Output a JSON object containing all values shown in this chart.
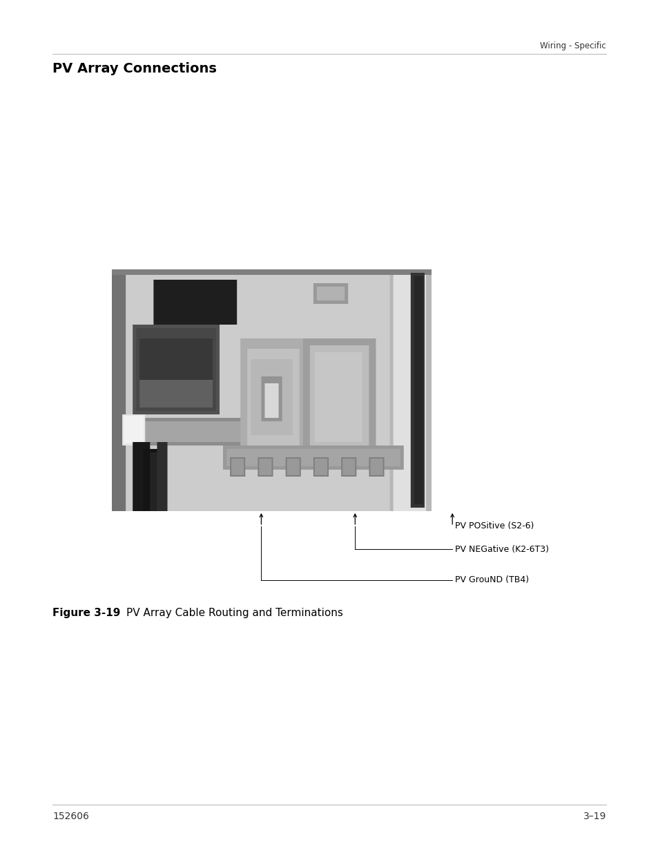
{
  "page_width": 9.54,
  "page_height": 12.35,
  "background_color": "#ffffff",
  "header_text": "Wiring - Specific",
  "header_line_color": "#bbbbbb",
  "section_title": "PV Array Connections",
  "section_title_fontsize": 14,
  "section_title_fontweight": "bold",
  "figure_caption_bold": "Figure 3-19",
  "figure_caption_rest": "PV Array Cable Routing and Terminations",
  "figure_caption_fontsize": 11,
  "footer_line_color": "#bbbbbb",
  "footer_left_text": "152606",
  "footer_right_text": "3–19",
  "footer_fontsize": 10,
  "annot_label_1": "PV POSitive (S2-6)",
  "annot_label_2": "PV NEGative (K2-6T3)",
  "annot_label_3": "PV GrouND (TB4)",
  "annot_fontsize": 9
}
